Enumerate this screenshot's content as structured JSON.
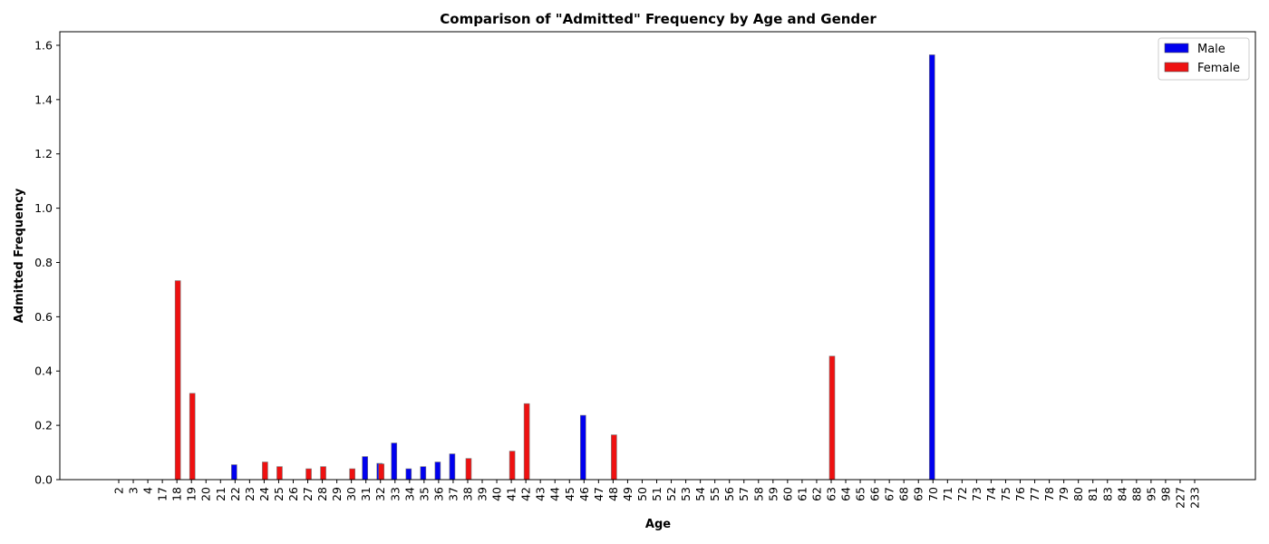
{
  "chart_data": {
    "type": "bar",
    "title": "Comparison of \"Admitted\" Frequency by Age and Gender",
    "xlabel": "Age",
    "ylabel": "Admitted Frequency",
    "ylim": [
      0,
      1.65
    ],
    "yticks": [
      "0.0",
      "0.2",
      "0.4",
      "0.6",
      "0.8",
      "1.0",
      "1.2",
      "1.4",
      "1.6"
    ],
    "legend_position": "top-right",
    "categories": [
      "2",
      "3",
      "4",
      "17",
      "18",
      "19",
      "20",
      "21",
      "22",
      "23",
      "24",
      "25",
      "26",
      "27",
      "28",
      "29",
      "30",
      "31",
      "32",
      "33",
      "34",
      "35",
      "36",
      "37",
      "38",
      "39",
      "40",
      "41",
      "42",
      "43",
      "44",
      "45",
      "46",
      "47",
      "48",
      "49",
      "50",
      "51",
      "52",
      "53",
      "54",
      "55",
      "56",
      "57",
      "58",
      "59",
      "60",
      "61",
      "62",
      "63",
      "64",
      "65",
      "66",
      "67",
      "68",
      "69",
      "70",
      "71",
      "72",
      "73",
      "74",
      "75",
      "76",
      "77",
      "78",
      "79",
      "80",
      "81",
      "83",
      "84",
      "88",
      "95",
      "98",
      "227",
      "233"
    ],
    "series": [
      {
        "name": "Male",
        "color": "#0000ee",
        "values": [
          0,
          0,
          0,
          0,
          0,
          0,
          0,
          0,
          0.055,
          0,
          0,
          0,
          0,
          0,
          0,
          0,
          0,
          0.085,
          0.06,
          0.135,
          0.04,
          0.048,
          0.065,
          0.095,
          0,
          0,
          0,
          0,
          0,
          0,
          0,
          0,
          0.237,
          0,
          0,
          0,
          0,
          0,
          0,
          0,
          0,
          0,
          0,
          0,
          0,
          0,
          0,
          0,
          0,
          0,
          0,
          0,
          0,
          0,
          0,
          0,
          1.565,
          0,
          0,
          0,
          0,
          0,
          0,
          0,
          0,
          0,
          0,
          0,
          0,
          0,
          0,
          0,
          0,
          0,
          0
        ]
      },
      {
        "name": "Female",
        "color": "#ee1111",
        "values": [
          0,
          0,
          0,
          0,
          0.733,
          0.318,
          0,
          0,
          0,
          0,
          0.065,
          0.048,
          0,
          0.04,
          0.048,
          0,
          0.04,
          0,
          0.058,
          0,
          0,
          0,
          0,
          0,
          0.078,
          0,
          0,
          0.105,
          0.28,
          0,
          0,
          0,
          0,
          0,
          0.165,
          0,
          0,
          0,
          0,
          0,
          0,
          0,
          0,
          0,
          0,
          0,
          0,
          0,
          0,
          0.455,
          0,
          0,
          0,
          0,
          0,
          0,
          0,
          0,
          0,
          0,
          0,
          0,
          0,
          0,
          0,
          0,
          0,
          0,
          0,
          0,
          0,
          0,
          0,
          0,
          0
        ]
      }
    ]
  }
}
